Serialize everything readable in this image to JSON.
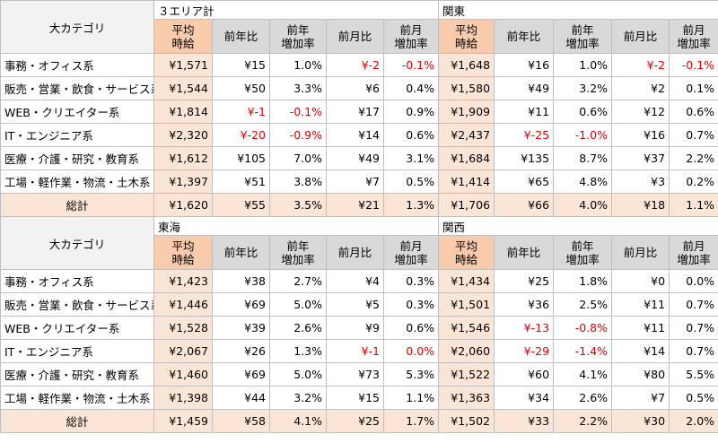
{
  "tables": [
    {
      "category_header": "大カテゴリ",
      "regions": [
        "３エリア計",
        "関東"
      ],
      "subheaders": [
        "平均\n時給",
        "前年比",
        "前年\n増加率",
        "前月比",
        "前月\n増加率",
        "平均\n時給",
        "前年比",
        "前年\n増加率",
        "前月比",
        "前月\n増加率"
      ],
      "rows": [
        {
          "category": "事務・オフィス系",
          "values": [
            "¥1,571",
            "¥15",
            "1.0%",
            "¥-2",
            "-0.1%",
            "¥1,648",
            "¥16",
            "1.0%",
            "¥-2",
            "-0.1%"
          ]
        },
        {
          "category": "販売・営業・飲食・サービス系",
          "values": [
            "¥1,544",
            "¥50",
            "3.3%",
            "¥6",
            "0.4%",
            "¥1,580",
            "¥49",
            "3.2%",
            "¥2",
            "0.1%"
          ]
        },
        {
          "category": "WEB・クリエイター系",
          "values": [
            "¥1,814",
            "¥-1",
            "-0.1%",
            "¥17",
            "0.9%",
            "¥1,909",
            "¥11",
            "0.6%",
            "¥12",
            "0.6%"
          ]
        },
        {
          "category": "IT・エンジニア系",
          "values": [
            "¥2,320",
            "¥-20",
            "-0.9%",
            "¥14",
            "0.6%",
            "¥2,437",
            "¥-25",
            "-1.0%",
            "¥16",
            "0.7%"
          ]
        },
        {
          "category": "医療・介護・研究・教育系",
          "values": [
            "¥1,612",
            "¥105",
            "7.0%",
            "¥49",
            "3.1%",
            "¥1,684",
            "¥135",
            "8.7%",
            "¥37",
            "2.2%"
          ]
        },
        {
          "category": "工場・軽作業・物流・土木系",
          "values": [
            "¥1,397",
            "¥51",
            "3.8%",
            "¥7",
            "0.5%",
            "¥1,414",
            "¥65",
            "4.8%",
            "¥3",
            "0.2%"
          ]
        }
      ],
      "total": {
        "label": "総計",
        "values": [
          "¥1,620",
          "¥55",
          "3.5%",
          "¥21",
          "1.3%",
          "¥1,706",
          "¥66",
          "4.0%",
          "¥18",
          "1.1%"
        ]
      }
    },
    {
      "category_header": "大カテゴリ",
      "regions": [
        "東海",
        "関西"
      ],
      "subheaders": [
        "平均\n時給",
        "前年比",
        "前年\n増加率",
        "前月比",
        "前月\n増加率",
        "平均\n時給",
        "前年比",
        "前年\n増加率",
        "前月比",
        "前月\n増加率"
      ],
      "rows": [
        {
          "category": "事務・オフィス系",
          "values": [
            "¥1,423",
            "¥38",
            "2.7%",
            "¥4",
            "0.3%",
            "¥1,434",
            "¥25",
            "1.8%",
            "¥0",
            "0.0%"
          ]
        },
        {
          "category": "販売・営業・飲食・サービス系",
          "values": [
            "¥1,446",
            "¥69",
            "5.0%",
            "¥5",
            "0.3%",
            "¥1,501",
            "¥36",
            "2.5%",
            "¥11",
            "0.7%"
          ]
        },
        {
          "category": "WEB・クリエイター系",
          "values": [
            "¥1,528",
            "¥39",
            "2.6%",
            "¥9",
            "0.6%",
            "¥1,546",
            "¥-13",
            "-0.8%",
            "¥11",
            "0.7%"
          ]
        },
        {
          "category": "IT・エンジニア系",
          "values": [
            "¥2,067",
            "¥26",
            "1.3%",
            "¥-1",
            "0.0%",
            "¥2,060",
            "¥-29",
            "-1.4%",
            "¥14",
            "0.7%"
          ]
        },
        {
          "category": "医療・介護・研究・教育系",
          "values": [
            "¥1,460",
            "¥69",
            "5.0%",
            "¥73",
            "5.3%",
            "¥1,522",
            "¥60",
            "4.1%",
            "¥80",
            "5.5%"
          ]
        },
        {
          "category": "工場・軽作業・物流・土木系",
          "values": [
            "¥1,398",
            "¥44",
            "3.2%",
            "¥15",
            "1.1%",
            "¥1,363",
            "¥34",
            "2.6%",
            "¥7",
            "0.5%"
          ]
        }
      ],
      "total": {
        "label": "総計",
        "values": [
          "¥1,459",
          "¥58",
          "4.1%",
          "¥25",
          "1.7%",
          "¥1,502",
          "¥33",
          "2.2%",
          "¥30",
          "2.0%"
        ]
      }
    }
  ],
  "negative_cells": [
    [
      [
        0,
        3
      ],
      [
        0,
        4
      ],
      [
        0,
        8
      ],
      [
        0,
        9
      ],
      [
        2,
        1
      ],
      [
        2,
        2
      ],
      [
        3,
        1
      ],
      [
        3,
        2
      ],
      [
        3,
        6
      ],
      [
        3,
        7
      ]
    ],
    [
      [
        2,
        6
      ],
      [
        2,
        7
      ],
      [
        3,
        3
      ],
      [
        3,
        4
      ],
      [
        3,
        6
      ],
      [
        3,
        7
      ]
    ]
  ],
  "colors": {
    "header_gray": "#d9d9d9",
    "header_peach": "#f8cbad",
    "cell_peach": "#fbe5d6",
    "negative_red": "#e00000",
    "border": "#bfbfbf"
  }
}
